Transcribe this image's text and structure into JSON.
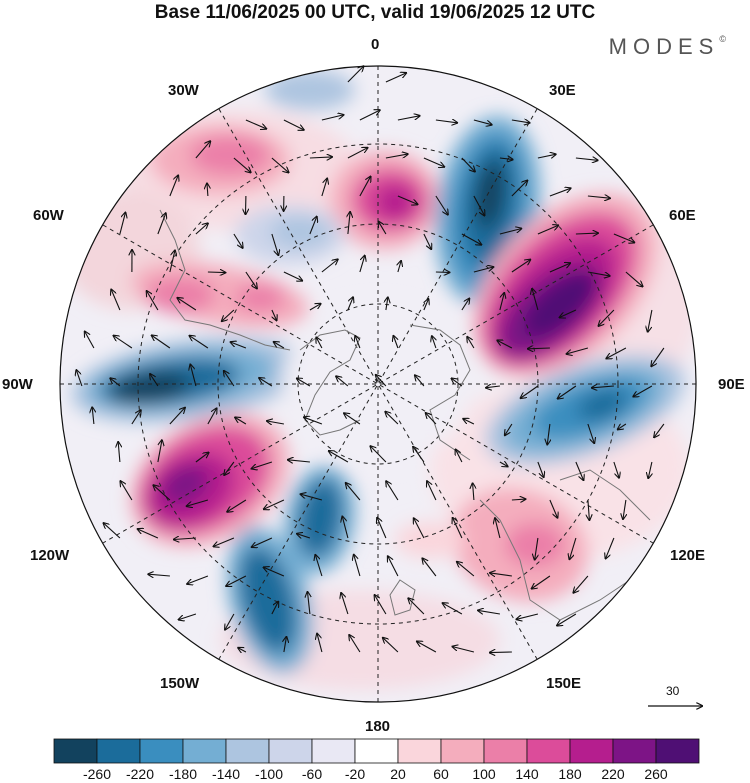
{
  "header": {
    "title": "Base 11/06/2025 00 UTC, valid 19/06/2025 12 UTC",
    "brand": "MODES",
    "brand_mark": "©"
  },
  "map": {
    "longitude_labels": {
      "top": "0",
      "top_right": "30E",
      "right_upper": "60E",
      "right": "90E",
      "right_lower": "120E",
      "bottom_right": "150E",
      "bottom": "180",
      "bottom_left": "150W",
      "left_lower": "120W",
      "left": "90W",
      "left_upper": "60W",
      "top_left": "30W"
    },
    "vector_reference_label": "30"
  },
  "legend": {
    "colors": [
      "#12425e",
      "#1b6c9b",
      "#3a8ebf",
      "#74aed3",
      "#adc5e0",
      "#cdd5ea",
      "#e9e8f4",
      "#ffffff",
      "#fad6dc",
      "#f4adbd",
      "#eb7fa8",
      "#dc4c9a",
      "#b51e8e",
      "#7d1486",
      "#4f0f74"
    ],
    "labels": [
      "-260",
      "-220",
      "-180",
      "-140",
      "-100",
      "-60",
      "-20",
      "20",
      "60",
      "100",
      "140",
      "180",
      "220",
      "260"
    ]
  }
}
